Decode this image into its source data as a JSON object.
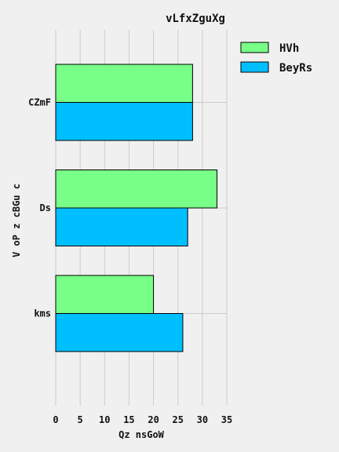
{
  "chart_data": {
    "type": "bar",
    "orientation": "horizontal",
    "title": "vLfxZguXg",
    "xlabel": "Qz   nsGoW",
    "ylabel": "V  oP z cBGu c",
    "categories": [
      "CZmF",
      "Ds",
      "kms"
    ],
    "series": [
      {
        "name": "HVh",
        "values": [
          28,
          33,
          20
        ],
        "color": "#77ff88"
      },
      {
        "name": "BeyRs",
        "values": [
          28,
          27,
          26
        ],
        "color": "#00bfff"
      }
    ],
    "xlim": [
      0,
      35
    ],
    "xticks": [
      0,
      5,
      10,
      15,
      20,
      25,
      30,
      35
    ],
    "grid": true,
    "legend": "top-right"
  }
}
